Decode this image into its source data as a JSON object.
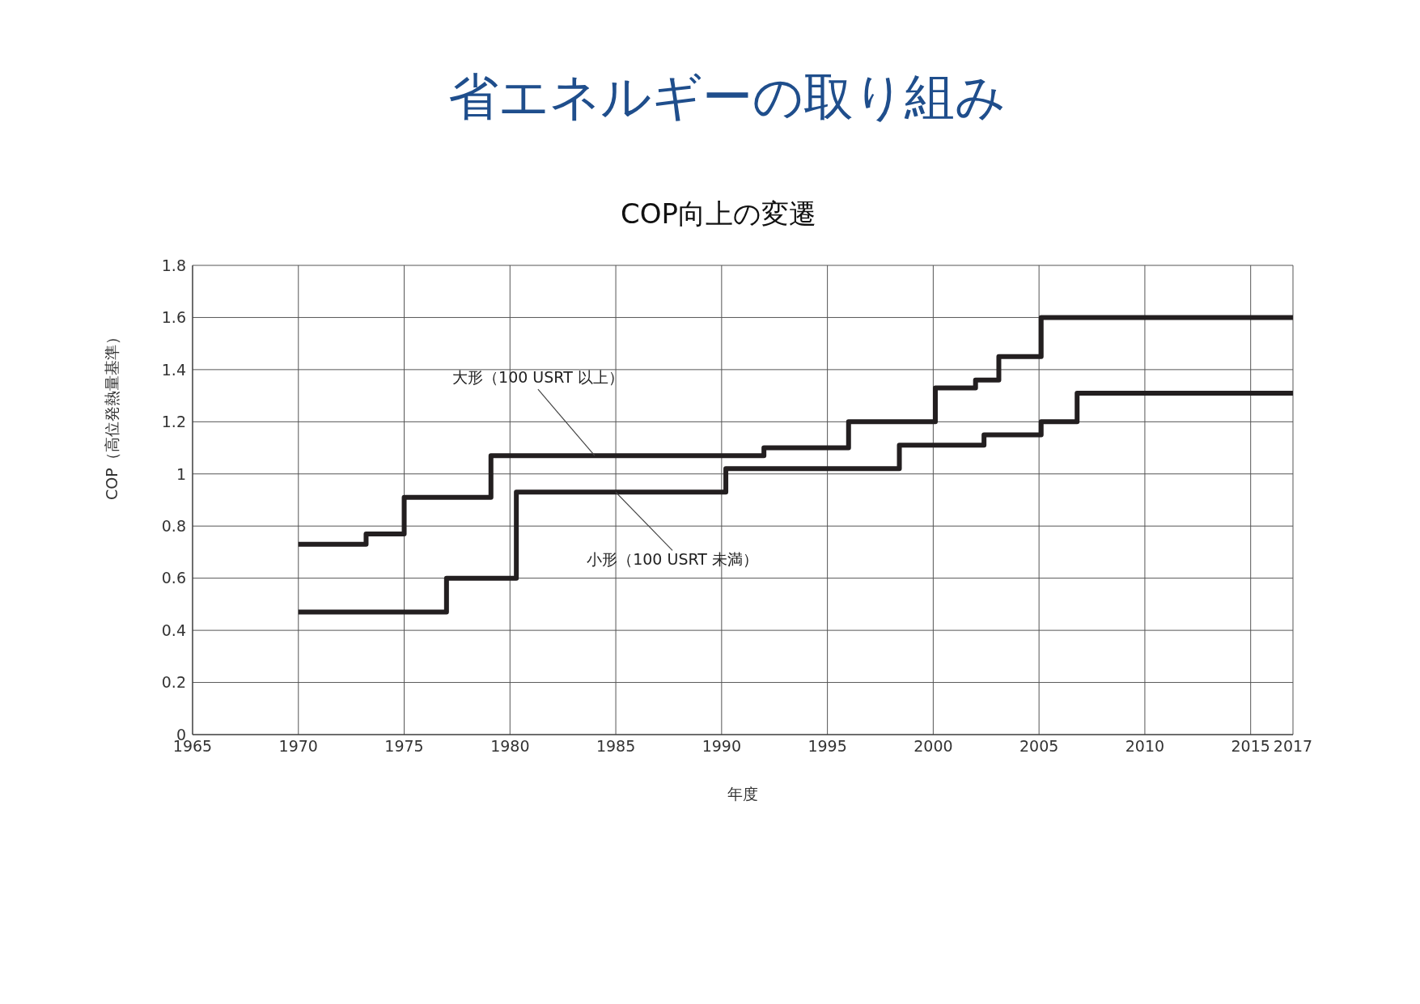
{
  "chart_data": {
    "type": "step",
    "title": "省エネルギーの取り組み",
    "subtitle": "COP向上の変遷",
    "xlabel": "年度",
    "ylabel": "COP（高位発熱量基準）",
    "series": [
      {
        "color": "#231f20",
        "x": [
          1970,
          1973.2,
          1975,
          1979.1,
          1992,
          1996,
          2000.1,
          2002,
          2003.1,
          2005.1,
          2017
        ],
        "values": [
          0.73,
          0.77,
          0.91,
          1.07,
          1.1,
          1.2,
          1.33,
          1.36,
          1.45,
          1.6,
          1.6
        ]
      },
      {
        "color": "#231f20",
        "x": [
          1970,
          1977,
          1980.3,
          1990.2,
          1998.4,
          2002.4,
          2005.1,
          2006.8,
          2017
        ],
        "values": [
          0.47,
          0.6,
          0.93,
          1.02,
          1.11,
          1.15,
          1.2,
          1.31,
          1.31
        ]
      }
    ],
    "annotations": [
      {
        "text": "大形（100 USRT 以上）",
        "x": 1984,
        "y": 1.07
      },
      {
        "text": "小形（100 USRT 未満）",
        "x": 1985,
        "y": 0.93
      }
    ],
    "xlim": [
      1965,
      2017
    ],
    "xticks": [
      1965,
      1970,
      1975,
      1980,
      1985,
      1990,
      1995,
      2000,
      2005,
      2010,
      2015,
      2017
    ],
    "ylim": [
      0,
      1.8
    ],
    "yticks": [
      0,
      0.2,
      0.4,
      0.6,
      0.8,
      1,
      1.2,
      1.4,
      1.6,
      1.8
    ],
    "grid": true,
    "legend": false,
    "marker": "none",
    "line_style": "solid"
  }
}
